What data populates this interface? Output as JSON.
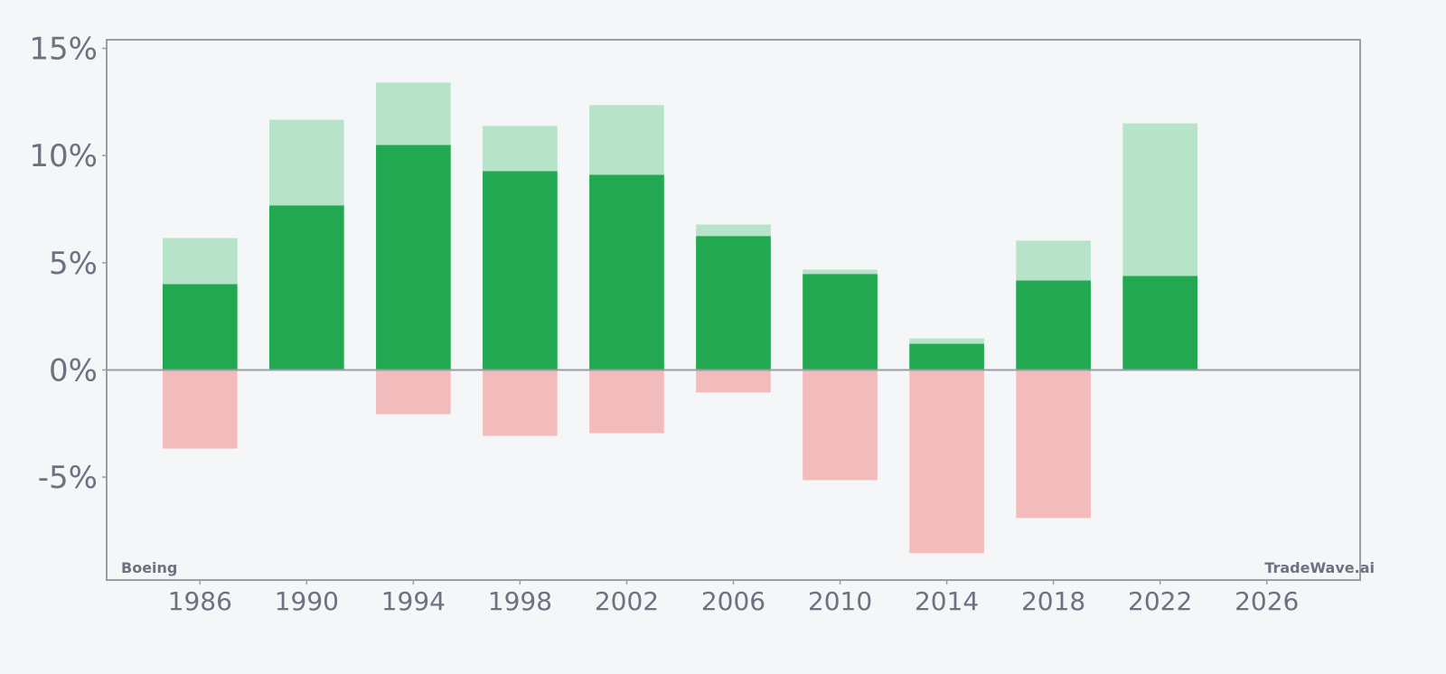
{
  "chart_data": {
    "type": "bar",
    "title": "",
    "xlabel": "",
    "ylabel": "",
    "x": [
      1986,
      1990,
      1994,
      1998,
      2002,
      2006,
      2010,
      2014,
      2018,
      2022
    ],
    "series": [
      {
        "values": [
          6.15,
          11.67,
          13.4,
          11.38,
          12.35,
          6.78,
          4.68,
          1.47,
          6.03,
          11.5
        ],
        "color": "#b7e3c8"
      },
      {
        "values": [
          4.0,
          7.67,
          10.49,
          9.27,
          9.1,
          6.24,
          4.47,
          1.22,
          4.17,
          4.38
        ],
        "color": "#22a851"
      },
      {
        "values": [
          -3.67,
          0,
          -2.06,
          -3.08,
          -2.95,
          -1.05,
          -5.14,
          -8.55,
          -6.91,
          0
        ],
        "color": "#f3bcbc"
      }
    ],
    "bar_width_years": 2.8,
    "xlim": [
      1982.5,
      2029.5
    ],
    "ylim": [
      -9.8,
      15.4
    ],
    "yticks": [
      15,
      10,
      5,
      0,
      -5
    ],
    "ytick_labels": [
      "15%",
      "10%",
      "5%",
      "0%",
      "-5%"
    ],
    "xticks": [
      1986,
      1990,
      1994,
      1998,
      2002,
      2006,
      2010,
      2014,
      2018,
      2022,
      2026
    ],
    "xtick_labels": [
      "1986",
      "1990",
      "1994",
      "1998",
      "2002",
      "2006",
      "2010",
      "2014",
      "2018",
      "2022",
      "2026"
    ],
    "grid": false,
    "legend": "none",
    "axis_color": "#9a9ca8",
    "text_color": "#6b7280"
  },
  "watermark_left": "Boeing",
  "watermark_right": "TradeWave.ai"
}
